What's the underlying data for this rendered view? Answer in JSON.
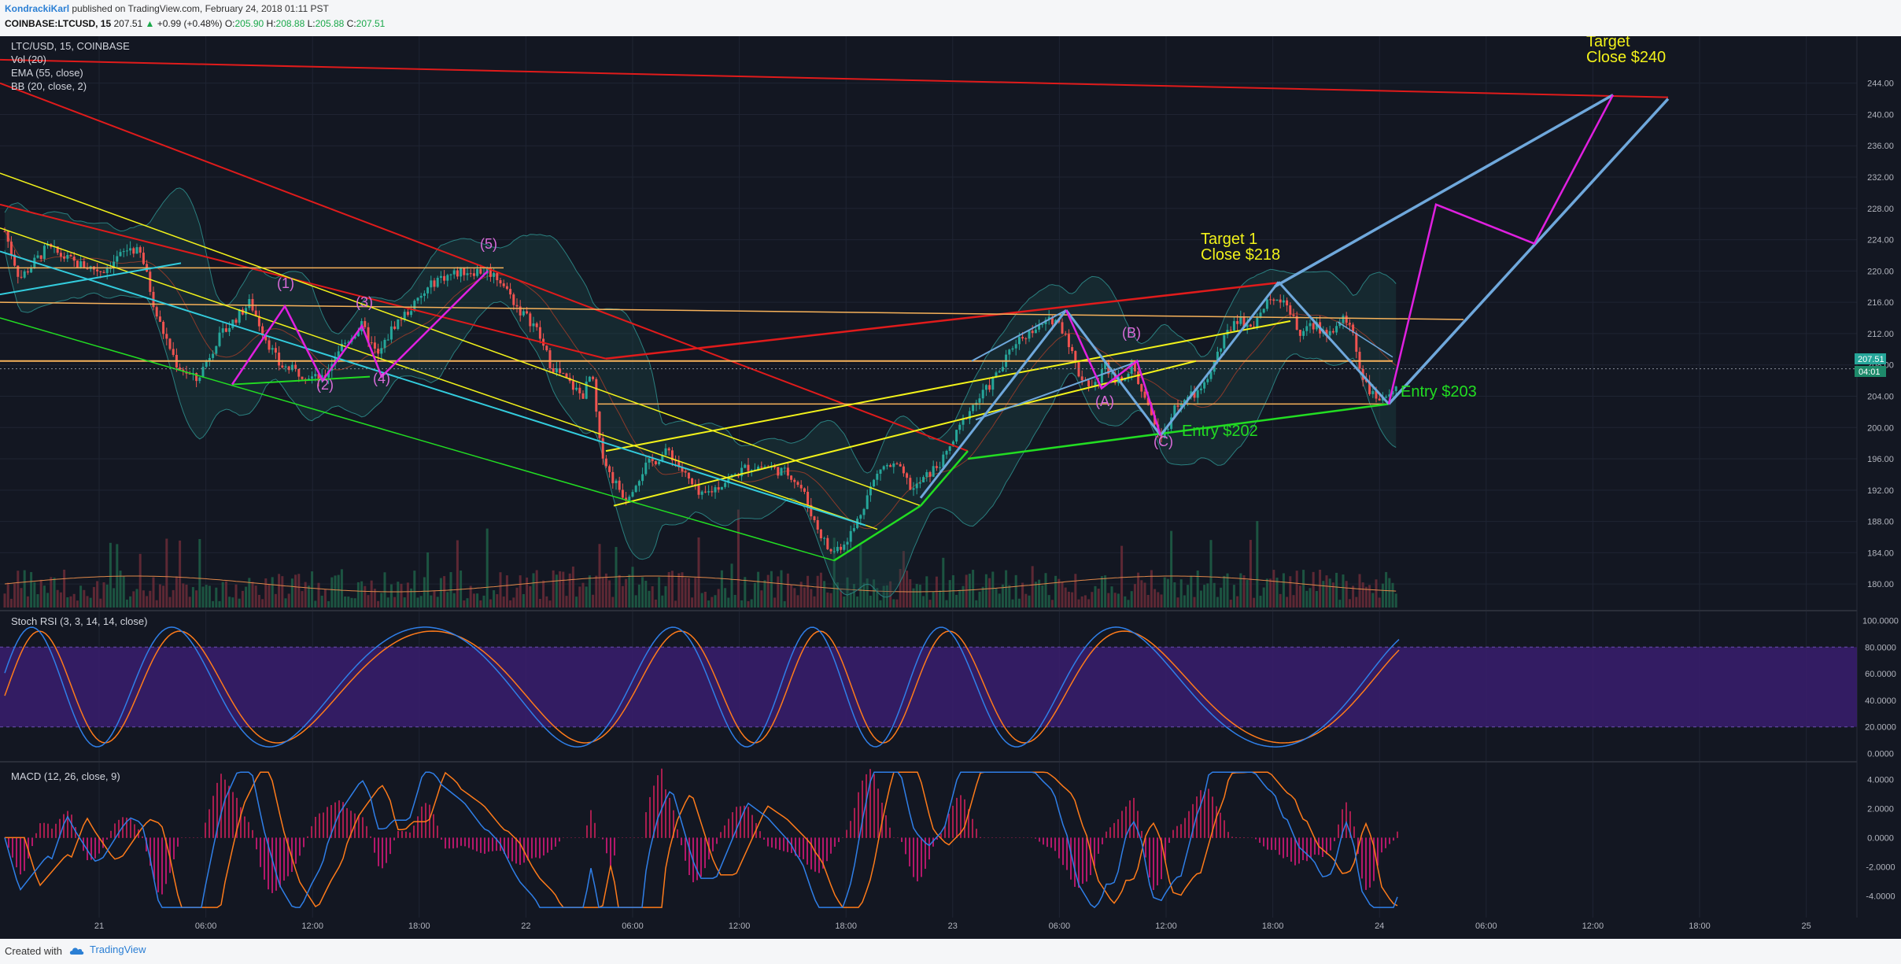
{
  "header": {
    "author": "KondrackiKarl",
    "published": "published on TradingView.com, February 24, 2018 01:11 PST",
    "symbol": "COINBASE:LTCUSD, 15",
    "last": "207.51",
    "change": "+0.99 (+0.48%)",
    "o_label": "O:",
    "o_value": "205.90",
    "h_label": "H:",
    "h_value": "208.88",
    "l_label": "L:",
    "l_value": "205.88",
    "c_label": "C:",
    "c_value": "207.51"
  },
  "legend": {
    "symbol": "LTC/USD, 15, COINBASE",
    "vol": "Vol (20)",
    "ema": "EMA (55, close)",
    "bb": "BB (20, close, 2)"
  },
  "stoch_label": "Stoch RSI (3, 3, 14, 14, close)",
  "macd_label": "MACD (12, 26, close, 9)",
  "price_badge": {
    "price": "207.51",
    "time": "04:01"
  },
  "footer": {
    "created": "Created with",
    "brand": "TradingView"
  },
  "colors": {
    "background": "#131722",
    "up": "#26a69a",
    "down": "#ef5350",
    "trend_red": "#e01b1b",
    "trend_yellow": "#f2f21a",
    "trend_orange": "#f7b25a",
    "trend_green": "#22dd22",
    "trend_cyan": "#33ccdd",
    "pattern_magenta": "#e020e0",
    "channel_blue": "#6fa8dc",
    "stoch_band": "#3a1d6e",
    "k_line": "#2f7fe8",
    "d_line": "#ff7b1a"
  },
  "chart_data": {
    "type": "candlestick",
    "x_ticks": [
      "21",
      "06:00",
      "12:00",
      "18:00",
      "22",
      "06:00",
      "12:00",
      "18:00",
      "23",
      "06:00",
      "12:00",
      "18:00",
      "24",
      "06:00",
      "12:00",
      "18:00",
      "25"
    ],
    "price_axis": {
      "ticks": [
        "244.00",
        "240.00",
        "236.00",
        "232.00",
        "228.00",
        "224.00",
        "220.00",
        "216.00",
        "212.00",
        "208.00",
        "204.00",
        "200.00",
        "196.00",
        "192.00",
        "188.00",
        "184.00",
        "180.00"
      ],
      "range": [
        177,
        250
      ]
    },
    "stoch_axis": {
      "ticks": [
        "100.0000",
        "80.0000",
        "60.0000",
        "40.0000",
        "20.0000",
        "0.0000"
      ],
      "range": [
        -5,
        105
      ]
    },
    "macd_axis": {
      "ticks": [
        "4.0000",
        "2.0000",
        "0.0000",
        "-2.0000",
        "-4.0000"
      ],
      "range": [
        -5.5,
        5
      ]
    },
    "price_path": [
      [
        0,
        227
      ],
      [
        25,
        219
      ],
      [
        60,
        223
      ],
      [
        95,
        221
      ],
      [
        130,
        220
      ],
      [
        165,
        223
      ],
      [
        180,
        222
      ],
      [
        200,
        214
      ],
      [
        225,
        208
      ],
      [
        250,
        206
      ],
      [
        275,
        211
      ],
      [
        300,
        214
      ],
      [
        318,
        216
      ],
      [
        335,
        212
      ],
      [
        355,
        208
      ],
      [
        380,
        207
      ],
      [
        410,
        206
      ],
      [
        430,
        210
      ],
      [
        460,
        213
      ],
      [
        480,
        209
      ],
      [
        500,
        213
      ],
      [
        530,
        216
      ],
      [
        555,
        219
      ],
      [
        590,
        220
      ],
      [
        620,
        220
      ],
      [
        635,
        219
      ],
      [
        660,
        215
      ],
      [
        680,
        213
      ],
      [
        700,
        208
      ],
      [
        720,
        206
      ],
      [
        740,
        204
      ],
      [
        752,
        207
      ],
      [
        762,
        198
      ],
      [
        775,
        194
      ],
      [
        795,
        191
      ],
      [
        820,
        195
      ],
      [
        850,
        197
      ],
      [
        870,
        194
      ],
      [
        890,
        191
      ],
      [
        920,
        193
      ],
      [
        950,
        195
      ],
      [
        975,
        195
      ],
      [
        1005,
        194
      ],
      [
        1020,
        192
      ],
      [
        1035,
        188
      ],
      [
        1055,
        184
      ],
      [
        1070,
        185
      ],
      [
        1085,
        187
      ],
      [
        1105,
        192
      ],
      [
        1120,
        195
      ],
      [
        1140,
        195
      ],
      [
        1160,
        192
      ],
      [
        1180,
        194
      ],
      [
        1200,
        196
      ],
      [
        1230,
        202
      ],
      [
        1255,
        205
      ],
      [
        1275,
        208
      ],
      [
        1290,
        211
      ],
      [
        1305,
        212
      ],
      [
        1325,
        213
      ],
      [
        1340,
        214
      ],
      [
        1355,
        212
      ],
      [
        1370,
        207
      ],
      [
        1390,
        205
      ],
      [
        1405,
        208
      ],
      [
        1420,
        206
      ],
      [
        1440,
        208
      ],
      [
        1460,
        202
      ],
      [
        1478,
        199
      ],
      [
        1495,
        203
      ],
      [
        1515,
        204
      ],
      [
        1530,
        205
      ],
      [
        1550,
        210
      ],
      [
        1570,
        214
      ],
      [
        1590,
        213
      ],
      [
        1605,
        215
      ],
      [
        1620,
        217
      ],
      [
        1635,
        216
      ],
      [
        1650,
        212
      ],
      [
        1670,
        213
      ],
      [
        1690,
        212
      ],
      [
        1710,
        214
      ],
      [
        1720,
        212
      ],
      [
        1730,
        207
      ],
      [
        1745,
        204
      ],
      [
        1760,
        203
      ],
      [
        1775,
        206
      ],
      [
        1790,
        206
      ],
      [
        1800,
        207.5
      ]
    ],
    "patterns": {
      "wave_labels": [
        "(1)",
        "(2)",
        "(3)",
        "(4)",
        "(5)"
      ],
      "abc_labels": [
        "(A)",
        "(B)",
        "(C)"
      ],
      "targets": [
        {
          "line1": "Target 1",
          "line2": "Close $218",
          "price": 218
        },
        {
          "line1": "Target",
          "line2": "Close $240",
          "price": 240
        }
      ],
      "entries": [
        {
          "label": "Entry $202",
          "price": 202
        },
        {
          "label": "Entry $203",
          "price": 203
        }
      ]
    }
  }
}
